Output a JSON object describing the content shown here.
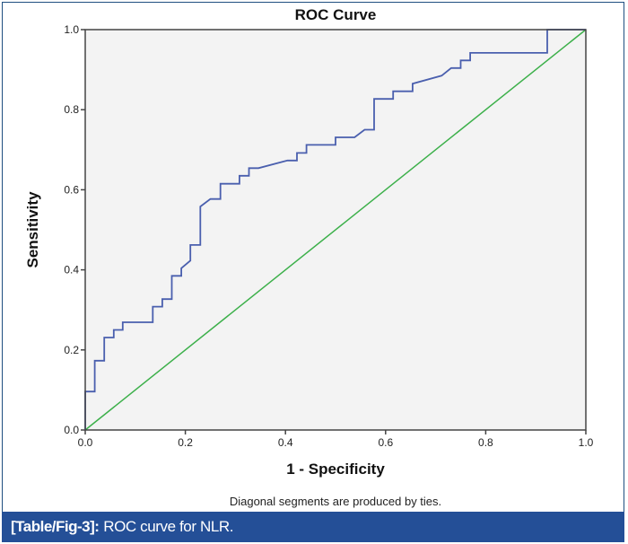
{
  "chart_data": {
    "type": "line",
    "title": "ROC Curve",
    "xlabel": "1 - Specificity",
    "ylabel": "Sensitivity",
    "xlim": [
      0,
      1
    ],
    "ylim": [
      0,
      1
    ],
    "grid": false,
    "xticks": [
      "0.0",
      "0.2",
      "0.4",
      "0.6",
      "0.8",
      "1.0"
    ],
    "yticks": [
      "0.0",
      "0.2",
      "0.4",
      "0.6",
      "0.8",
      "1.0"
    ],
    "footnote": "Diagonal segments are produced by ties.",
    "series": [
      {
        "name": "ROC",
        "color": "#4a5fae",
        "x": [
          0,
          0,
          0.019,
          0.019,
          0.038,
          0.038,
          0.057,
          0.057,
          0.075,
          0.075,
          0.135,
          0.135,
          0.154,
          0.154,
          0.173,
          0.173,
          0.192,
          0.192,
          0.21,
          0.21,
          0.23,
          0.23,
          0.25,
          0.27,
          0.27,
          0.308,
          0.308,
          0.327,
          0.327,
          0.346,
          0.404,
          0.423,
          0.423,
          0.442,
          0.442,
          0.5,
          0.5,
          0.538,
          0.558,
          0.577,
          0.577,
          0.615,
          0.615,
          0.654,
          0.654,
          0.712,
          0.731,
          0.75,
          0.75,
          0.769,
          0.769,
          0.923,
          0.923,
          1.0
        ],
        "y": [
          0,
          0.096,
          0.096,
          0.173,
          0.173,
          0.231,
          0.231,
          0.25,
          0.25,
          0.269,
          0.269,
          0.308,
          0.308,
          0.327,
          0.327,
          0.385,
          0.385,
          0.404,
          0.423,
          0.462,
          0.462,
          0.558,
          0.577,
          0.577,
          0.615,
          0.615,
          0.635,
          0.635,
          0.654,
          0.654,
          0.673,
          0.673,
          0.692,
          0.692,
          0.712,
          0.712,
          0.731,
          0.731,
          0.75,
          0.75,
          0.827,
          0.827,
          0.846,
          0.846,
          0.865,
          0.885,
          0.904,
          0.904,
          0.923,
          0.923,
          0.942,
          0.942,
          1.0,
          1.0
        ]
      },
      {
        "name": "Reference Line",
        "color": "#3cb04a",
        "x": [
          0,
          1
        ],
        "y": [
          0,
          1
        ]
      }
    ]
  },
  "caption": {
    "label": "[Table/Fig-3]:",
    "text": "ROC curve for NLR."
  },
  "colors": {
    "plot_background": "#f3f3f3",
    "axis": "#444444",
    "caption_background": "#244f97"
  }
}
